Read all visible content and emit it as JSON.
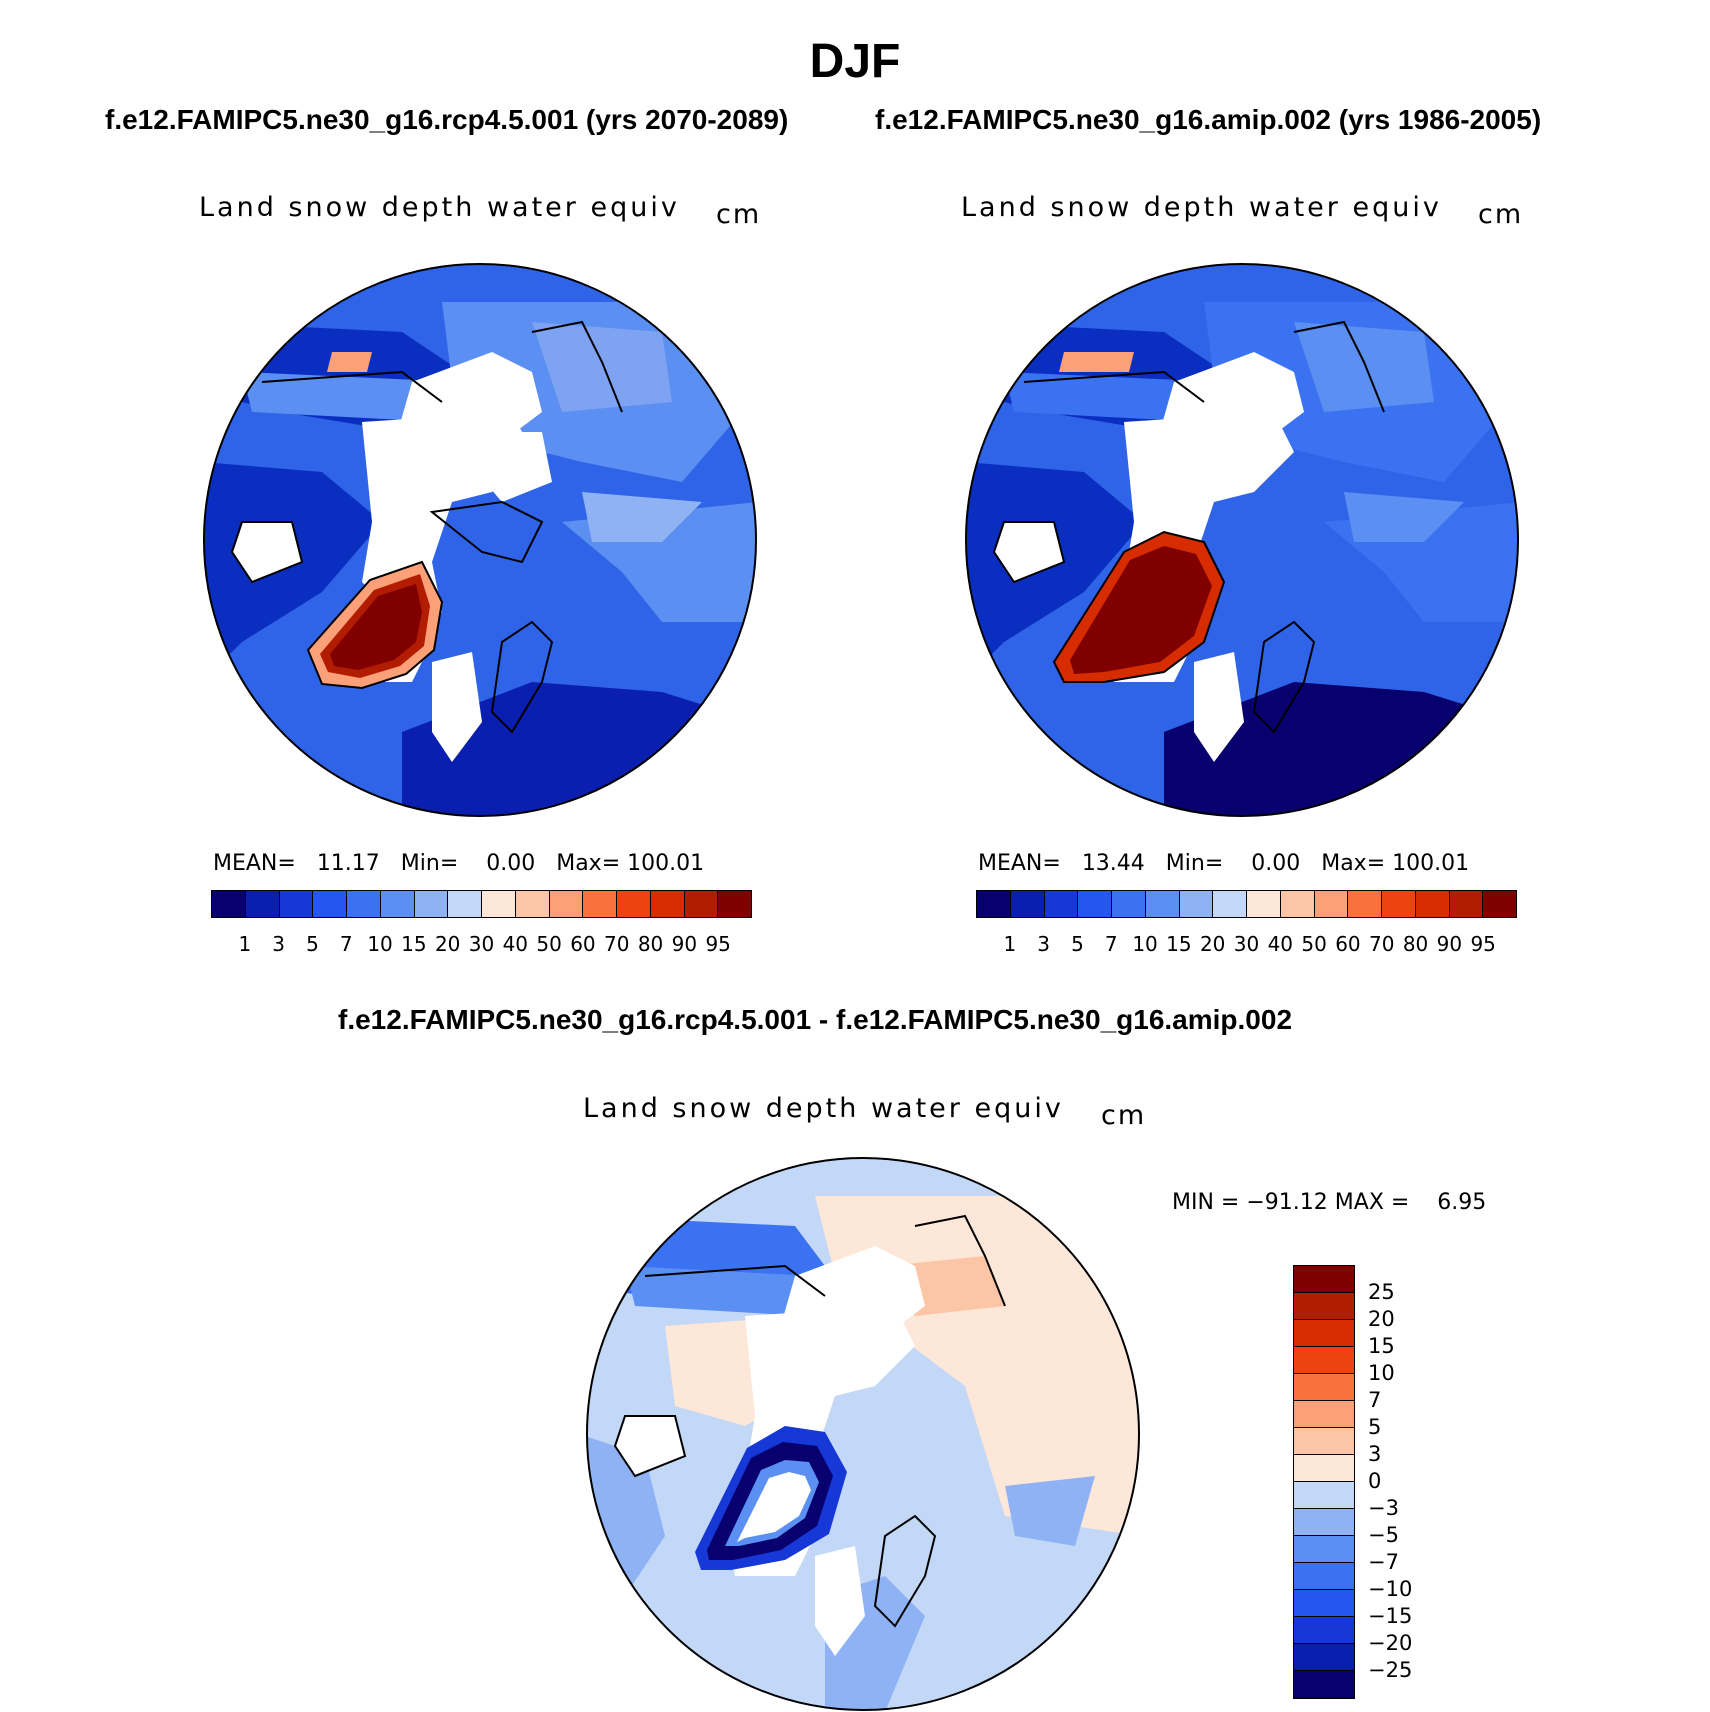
{
  "title": "DJF",
  "panels": [
    {
      "subtitle": "f.e12.FAMIPC5.ne30_g16.rcp4.5.001 (yrs 2070-2089)",
      "field": "Land snow depth water equiv",
      "units": "cm",
      "mean_label": "MEAN=",
      "mean": "11.17",
      "min_label": "Min=",
      "min": "0.00",
      "max_label": "Max=",
      "max": "100.01"
    },
    {
      "subtitle": "f.e12.FAMIPC5.ne30_g16.amip.002 (yrs 1986-2005)",
      "field": "Land snow depth water equiv",
      "units": "cm",
      "mean_label": "MEAN=",
      "mean": "13.44",
      "min_label": "Min=",
      "min": "0.00",
      "max_label": "Max=",
      "max": "100.01"
    }
  ],
  "diff": {
    "subtitle": "f.e12.FAMIPC5.ne30_g16.rcp4.5.001 - f.e12.FAMIPC5.ne30_g16.amip.002",
    "field": "Land snow depth water equiv",
    "units": "cm",
    "min_label": "MIN =",
    "min": "−91.12",
    "max_label": "MAX =",
    "max": "6.95"
  },
  "colorbar_abs": {
    "labels": [
      "1",
      "3",
      "5",
      "7",
      "10",
      "15",
      "20",
      "30",
      "40",
      "50",
      "60",
      "70",
      "80",
      "90",
      "95"
    ],
    "colors": [
      "#08006e",
      "#0a1fb0",
      "#1538d6",
      "#2457ef",
      "#3a72f2",
      "#5b8ff1",
      "#8fb2f4",
      "#c3d8f7",
      "#fde7d8",
      "#fcc6a6",
      "#fca07a",
      "#f9723e",
      "#ef4212",
      "#d72c00",
      "#b21c00",
      "#800000"
    ]
  },
  "colorbar_diff": {
    "labels": [
      "25",
      "20",
      "15",
      "10",
      "7",
      "5",
      "3",
      "0",
      "−3",
      "−5",
      "−7",
      "−10",
      "−15",
      "−20",
      "−25"
    ],
    "colors": [
      "#800000",
      "#b21c00",
      "#d72c00",
      "#ef4212",
      "#f9723e",
      "#fca07a",
      "#fcc6a6",
      "#fde7d8",
      "#c3d8f7",
      "#8fb2f4",
      "#5b8ff1",
      "#3a72f2",
      "#2457ef",
      "#1538d6",
      "#0a1fb0",
      "#08006e"
    ]
  }
}
